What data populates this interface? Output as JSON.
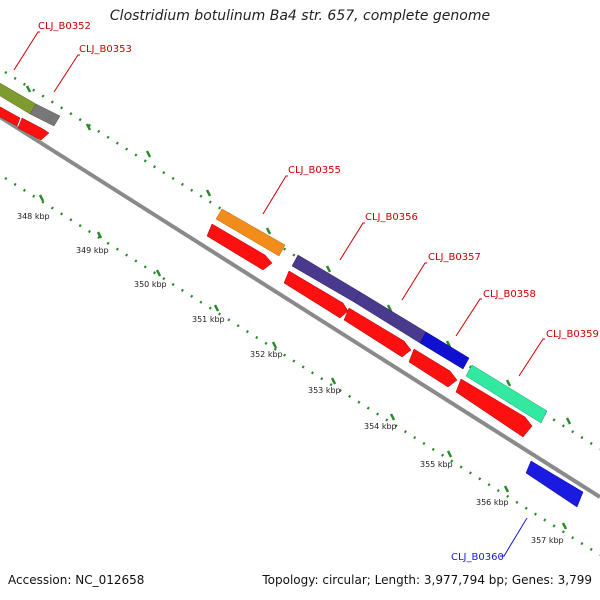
{
  "title": "Clostridium botulinum Ba4 str. 657, complete genome",
  "accession": "Accession: NC_012658",
  "summary": "Topology: circular; Length: 3,977,794 bp; Genes: 3,799",
  "kbp_labels": [
    "348 kbp",
    "349 kbp",
    "350 kbp",
    "351 kbp",
    "352 kbp",
    "353 kbp",
    "354 kbp",
    "355 kbp",
    "356 kbp",
    "357 kbp"
  ],
  "genes": [
    {
      "name": "CLJ_B0352",
      "color": "#7f9a2e",
      "strand": "upper"
    },
    {
      "name": "CLJ_B0353",
      "color": "#777777",
      "strand": "upper"
    },
    {
      "name": "CLJ_B0355",
      "color": "#f28c1a",
      "strand": "upper"
    },
    {
      "name": "CLJ_B0356",
      "color": "#4a3a8e",
      "strand": "upper"
    },
    {
      "name": "CLJ_B0357",
      "color": "#4a3a8e",
      "strand": "upper"
    },
    {
      "name": "CLJ_B0358",
      "color": "#1010d0",
      "strand": "upper"
    },
    {
      "name": "CLJ_B0359",
      "color": "#33e8a0",
      "strand": "upper"
    },
    {
      "name": "CLJ_B0360",
      "color": "#1a1ae0",
      "strand": "lower"
    }
  ],
  "colors": {
    "label_red": "#cc0000",
    "label_blue": "#1a1add",
    "cds": "#ff1010",
    "backbone": "#8a8a8a",
    "ticks": "#2a8a2a"
  }
}
